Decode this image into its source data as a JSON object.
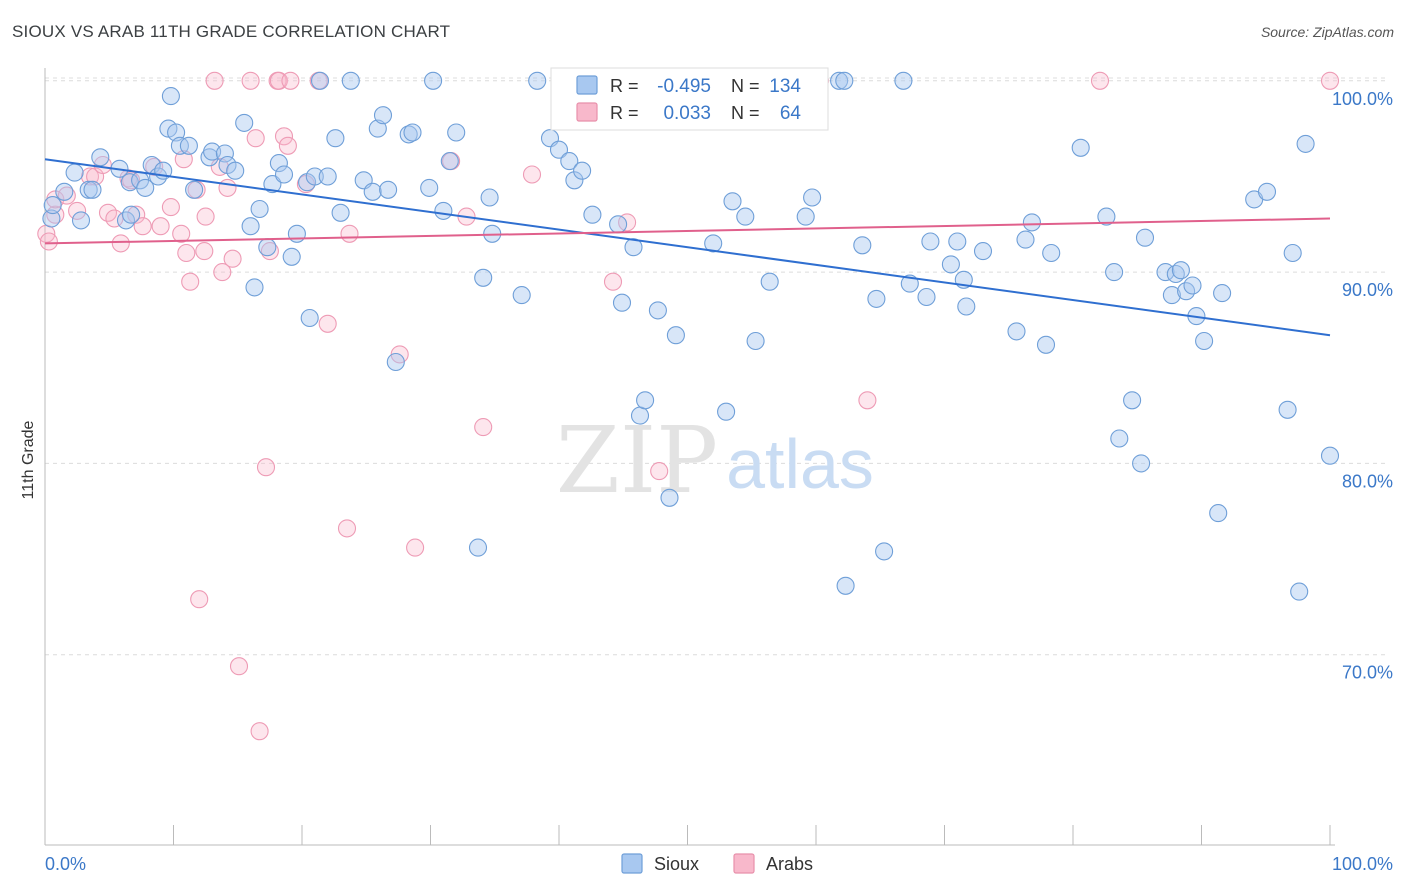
{
  "title": "SIOUX VS ARAB 11TH GRADE CORRELATION CHART",
  "source": "Source: ZipAtlas.com",
  "watermark": {
    "zip": "ZIP",
    "atlas": "atlas"
  },
  "legend_top": [
    {
      "r_label": "R =",
      "r_value": "-0.495",
      "n_label": "N =",
      "n_value": "134",
      "color": "#a8c8f0",
      "stroke": "#6f9fd8"
    },
    {
      "r_label": "R =",
      "r_value": "0.033",
      "n_label": "N =",
      "n_value": "64",
      "color": "#f8b8cb",
      "stroke": "#e890ab"
    }
  ],
  "legend_bottom": [
    {
      "label": "Sioux",
      "color": "#a8c8f0",
      "stroke": "#6f9fd8"
    },
    {
      "label": "Arabs",
      "color": "#f8b8cb",
      "stroke": "#e890ab"
    }
  ],
  "chart_data": {
    "type": "scatter",
    "ylabel": "11th Grade",
    "xlim": [
      0,
      100
    ],
    "ylim": [
      60,
      102
    ],
    "x_tick_labels": [
      "0.0%",
      "100.0%"
    ],
    "y_ticks": [
      {
        "value": 70,
        "label": "70.0%"
      },
      {
        "value": 80,
        "label": "80.0%"
      },
      {
        "value": 90,
        "label": "90.0%"
      },
      {
        "value": 100,
        "label": "100.0%"
      }
    ],
    "series": [
      {
        "name": "Sioux",
        "color": "#7aaae8",
        "trend": [
          [
            0,
            95.9
          ],
          [
            100,
            86.7
          ]
        ],
        "points": [
          [
            0.5,
            92.8
          ],
          [
            0.6,
            93.5
          ],
          [
            1.5,
            94.2
          ],
          [
            2.3,
            95.2
          ],
          [
            2.8,
            92.7
          ],
          [
            3.4,
            94.3
          ],
          [
            3.7,
            94.3
          ],
          [
            4.3,
            96.0
          ],
          [
            5.8,
            95.4
          ],
          [
            6.3,
            92.7
          ],
          [
            6.6,
            94.7
          ],
          [
            6.7,
            93.0
          ],
          [
            7.4,
            94.8
          ],
          [
            7.8,
            94.4
          ],
          [
            8.3,
            95.6
          ],
          [
            8.8,
            95.0
          ],
          [
            9.2,
            95.3
          ],
          [
            9.6,
            97.5
          ],
          [
            9.8,
            99.2
          ],
          [
            10.2,
            97.3
          ],
          [
            10.5,
            96.6
          ],
          [
            11.2,
            96.6
          ],
          [
            11.6,
            94.3
          ],
          [
            12.8,
            96.0
          ],
          [
            13.0,
            96.3
          ],
          [
            14.0,
            96.2
          ],
          [
            14.2,
            95.6
          ],
          [
            14.8,
            95.3
          ],
          [
            15.5,
            97.8
          ],
          [
            16.0,
            92.4
          ],
          [
            16.3,
            89.2
          ],
          [
            16.7,
            93.3
          ],
          [
            17.3,
            91.3
          ],
          [
            17.7,
            94.6
          ],
          [
            18.2,
            95.7
          ],
          [
            18.6,
            95.1
          ],
          [
            19.2,
            90.8
          ],
          [
            19.6,
            92.0
          ],
          [
            20.4,
            94.7
          ],
          [
            20.6,
            87.6
          ],
          [
            21.0,
            95.0
          ],
          [
            21.4,
            100.0
          ],
          [
            22.0,
            95.0
          ],
          [
            22.6,
            97.0
          ],
          [
            23.0,
            93.1
          ],
          [
            23.8,
            100.0
          ],
          [
            24.8,
            94.8
          ],
          [
            25.5,
            94.2
          ],
          [
            25.9,
            97.5
          ],
          [
            26.3,
            98.2
          ],
          [
            26.7,
            94.3
          ],
          [
            27.3,
            85.3
          ],
          [
            28.3,
            97.2
          ],
          [
            28.6,
            97.3
          ],
          [
            29.9,
            94.4
          ],
          [
            30.2,
            100.0
          ],
          [
            31.0,
            93.2
          ],
          [
            31.5,
            95.8
          ],
          [
            32.0,
            97.3
          ],
          [
            33.7,
            75.6
          ],
          [
            34.1,
            89.7
          ],
          [
            34.6,
            93.9
          ],
          [
            34.8,
            92.0
          ],
          [
            37.1,
            88.8
          ],
          [
            38.3,
            100.0
          ],
          [
            39.3,
            97.0
          ],
          [
            40.0,
            96.4
          ],
          [
            40.8,
            95.8
          ],
          [
            41.2,
            94.8
          ],
          [
            41.8,
            95.3
          ],
          [
            42.6,
            93.0
          ],
          [
            43.5,
            100.0
          ],
          [
            44.6,
            92.5
          ],
          [
            44.9,
            88.4
          ],
          [
            45.8,
            91.3
          ],
          [
            46.3,
            82.5
          ],
          [
            46.7,
            83.3
          ],
          [
            47.7,
            88.0
          ],
          [
            48.6,
            78.2
          ],
          [
            49.1,
            86.7
          ],
          [
            52.0,
            91.5
          ],
          [
            53.0,
            82.7
          ],
          [
            53.5,
            93.7
          ],
          [
            54.5,
            92.9
          ],
          [
            55.3,
            86.4
          ],
          [
            56.4,
            89.5
          ],
          [
            59.2,
            92.9
          ],
          [
            59.7,
            93.9
          ],
          [
            61.8,
            100.0
          ],
          [
            62.2,
            100.0
          ],
          [
            62.3,
            73.6
          ],
          [
            63.6,
            91.4
          ],
          [
            64.7,
            88.6
          ],
          [
            65.3,
            75.4
          ],
          [
            66.8,
            100.0
          ],
          [
            67.3,
            89.4
          ],
          [
            68.6,
            88.7
          ],
          [
            68.9,
            91.6
          ],
          [
            70.5,
            90.4
          ],
          [
            71.0,
            91.6
          ],
          [
            71.5,
            89.6
          ],
          [
            71.7,
            88.2
          ],
          [
            73.0,
            91.1
          ],
          [
            75.6,
            86.9
          ],
          [
            76.3,
            91.7
          ],
          [
            76.8,
            92.6
          ],
          [
            77.9,
            86.2
          ],
          [
            78.3,
            91.0
          ],
          [
            80.6,
            96.5
          ],
          [
            82.6,
            92.9
          ],
          [
            83.2,
            90.0
          ],
          [
            83.6,
            81.3
          ],
          [
            84.6,
            83.3
          ],
          [
            85.3,
            80.0
          ],
          [
            85.6,
            91.8
          ],
          [
            87.2,
            90.0
          ],
          [
            87.7,
            88.8
          ],
          [
            88.0,
            89.9
          ],
          [
            88.4,
            90.1
          ],
          [
            88.8,
            89.0
          ],
          [
            89.3,
            89.3
          ],
          [
            89.6,
            87.7
          ],
          [
            90.2,
            86.4
          ],
          [
            91.3,
            77.4
          ],
          [
            91.6,
            88.9
          ],
          [
            94.1,
            93.8
          ],
          [
            95.1,
            94.2
          ],
          [
            96.7,
            82.8
          ],
          [
            97.1,
            91.0
          ],
          [
            97.6,
            73.3
          ],
          [
            98.1,
            96.7
          ],
          [
            100.0,
            80.4
          ]
        ]
      },
      {
        "name": "Arabs",
        "color": "#f09ab5",
        "trend": [
          [
            0,
            91.5
          ],
          [
            100,
            92.8
          ]
        ],
        "points": [
          [
            0.1,
            92.0
          ],
          [
            0.3,
            91.6
          ],
          [
            0.8,
            93.0
          ],
          [
            0.8,
            93.8
          ],
          [
            1.7,
            94.0
          ],
          [
            2.5,
            93.2
          ],
          [
            3.5,
            95.0
          ],
          [
            3.9,
            95.0
          ],
          [
            4.5,
            95.6
          ],
          [
            4.9,
            93.1
          ],
          [
            5.4,
            92.8
          ],
          [
            5.9,
            91.5
          ],
          [
            6.5,
            94.9
          ],
          [
            6.7,
            94.8
          ],
          [
            7.1,
            93.0
          ],
          [
            7.6,
            92.4
          ],
          [
            8.5,
            95.5
          ],
          [
            9.0,
            92.4
          ],
          [
            9.8,
            93.4
          ],
          [
            10.6,
            92.0
          ],
          [
            10.8,
            95.9
          ],
          [
            11.0,
            91.0
          ],
          [
            11.3,
            89.5
          ],
          [
            11.8,
            94.3
          ],
          [
            12.4,
            91.1
          ],
          [
            12.5,
            92.9
          ],
          [
            13.2,
            100.0
          ],
          [
            13.6,
            95.5
          ],
          [
            13.8,
            90.0
          ],
          [
            14.2,
            94.4
          ],
          [
            14.6,
            90.7
          ],
          [
            15.1,
            69.4
          ],
          [
            16.0,
            100.0
          ],
          [
            16.4,
            97.0
          ],
          [
            16.7,
            66.0
          ],
          [
            17.2,
            79.8
          ],
          [
            17.5,
            91.1
          ],
          [
            18.1,
            100.0
          ],
          [
            18.2,
            100.0
          ],
          [
            18.6,
            97.1
          ],
          [
            18.9,
            96.6
          ],
          [
            19.1,
            100.0
          ],
          [
            20.3,
            94.6
          ],
          [
            21.3,
            100.0
          ],
          [
            22.0,
            87.3
          ],
          [
            23.5,
            76.6
          ],
          [
            23.7,
            92.0
          ],
          [
            27.6,
            85.7
          ],
          [
            28.8,
            75.6
          ],
          [
            31.6,
            95.8
          ],
          [
            32.8,
            92.9
          ],
          [
            34.1,
            81.9
          ],
          [
            37.9,
            95.1
          ],
          [
            44.2,
            89.5
          ],
          [
            45.3,
            92.6
          ],
          [
            47.1,
            100.0
          ],
          [
            47.8,
            79.6
          ],
          [
            51.2,
            100.0
          ],
          [
            52.0,
            100.0
          ],
          [
            60.3,
            100.0
          ],
          [
            64.0,
            83.3
          ],
          [
            82.1,
            100.0
          ],
          [
            100.0,
            100.0
          ],
          [
            12.0,
            72.9
          ]
        ]
      }
    ]
  }
}
